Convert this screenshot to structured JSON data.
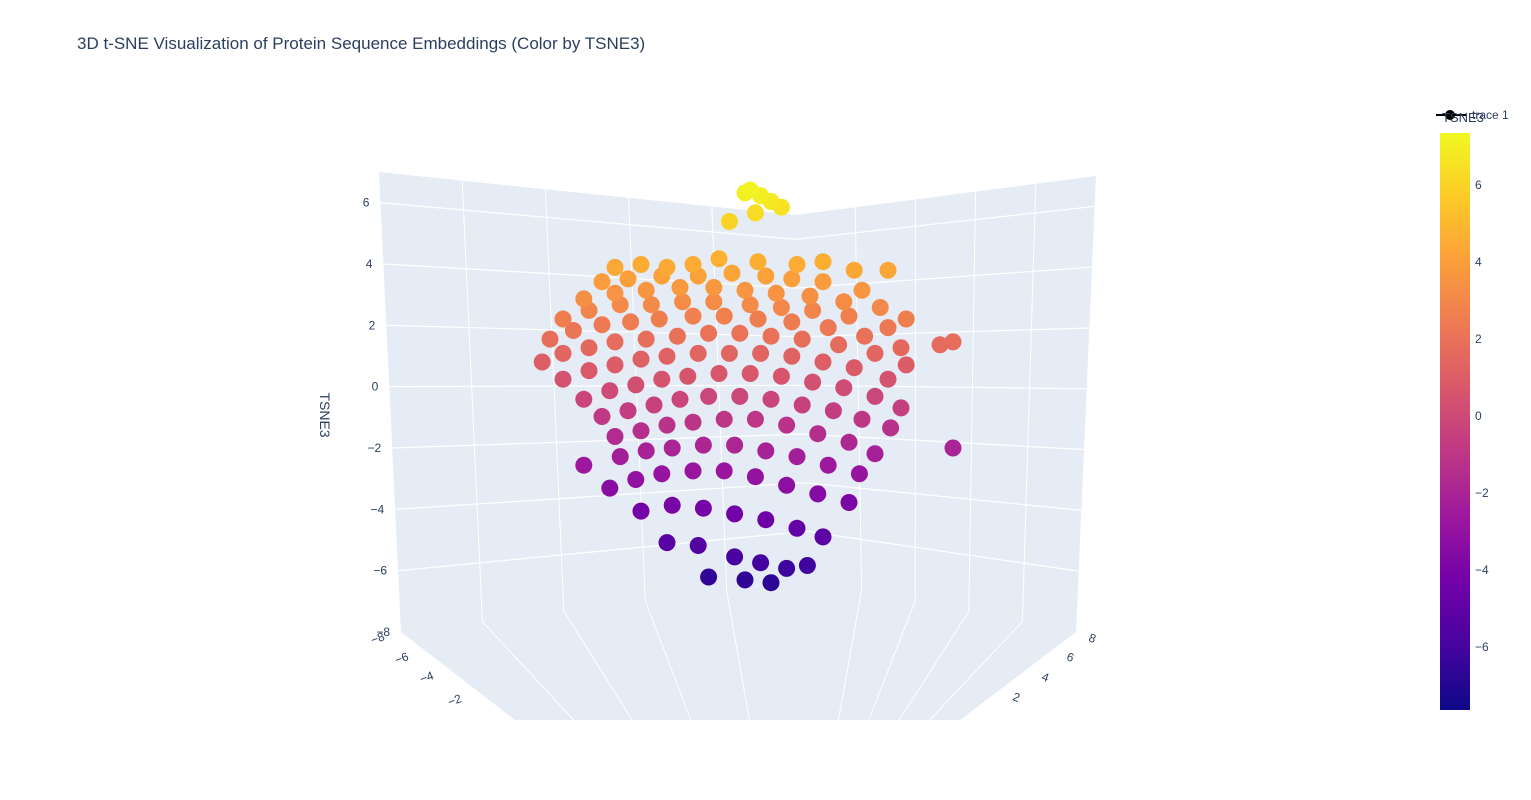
{
  "chart_data": {
    "type": "scatter",
    "title": "3D t-SNE Visualization of Protein Sequence Embeddings (Color by TSNE3)",
    "series": [
      {
        "name": "trace 1"
      }
    ],
    "axes": {
      "z": {
        "label": "TSNE3",
        "ticks": [
          "6",
          "4",
          "2",
          "0",
          "−2",
          "−4",
          "−6",
          "−8"
        ],
        "range": [
          -8,
          7
        ]
      },
      "x": {
        "label": "",
        "ticks": [
          "−8",
          "−6",
          "−4",
          "−2"
        ]
      },
      "y": {
        "label": "",
        "ticks": [
          "8",
          "6",
          "4",
          "2"
        ]
      }
    },
    "colorbar": {
      "title": "TSNE3",
      "ticks": [
        "6",
        "4",
        "2",
        "0",
        "−2",
        "−4",
        "−6"
      ],
      "range": [
        -7.6,
        7.2
      ],
      "colorscale": [
        "#0d0887",
        "#46039f",
        "#7201a8",
        "#9c179e",
        "#bd3786",
        "#d8576b",
        "#ed7953",
        "#fb9f3a",
        "#fdca26",
        "#f0f921"
      ]
    },
    "points": [
      [
        0.0,
        6.9
      ],
      [
        0.02,
        7.0
      ],
      [
        0.06,
        6.8
      ],
      [
        0.1,
        6.6
      ],
      [
        0.04,
        6.2
      ],
      [
        -0.06,
        5.9
      ],
      [
        0.14,
        6.4
      ],
      [
        -0.5,
        4.3
      ],
      [
        -0.4,
        4.4
      ],
      [
        -0.3,
        4.3
      ],
      [
        -0.2,
        4.4
      ],
      [
        -0.1,
        4.6
      ],
      [
        0.05,
        4.5
      ],
      [
        0.2,
        4.4
      ],
      [
        0.3,
        4.5
      ],
      [
        0.42,
        4.2
      ],
      [
        0.55,
        4.2
      ],
      [
        -0.55,
        3.8
      ],
      [
        -0.45,
        3.9
      ],
      [
        -0.32,
        4.0
      ],
      [
        -0.18,
        4.0
      ],
      [
        -0.05,
        4.1
      ],
      [
        0.08,
        4.0
      ],
      [
        0.18,
        3.9
      ],
      [
        0.3,
        3.8
      ],
      [
        0.45,
        3.5
      ],
      [
        -0.62,
        3.2
      ],
      [
        -0.5,
        3.4
      ],
      [
        -0.38,
        3.5
      ],
      [
        -0.25,
        3.6
      ],
      [
        -0.12,
        3.6
      ],
      [
        0.0,
        3.5
      ],
      [
        0.12,
        3.4
      ],
      [
        0.25,
        3.3
      ],
      [
        0.38,
        3.1
      ],
      [
        0.52,
        2.9
      ],
      [
        0.62,
        2.5
      ],
      [
        -0.7,
        2.5
      ],
      [
        -0.6,
        2.8
      ],
      [
        -0.48,
        3.0
      ],
      [
        -0.36,
        3.0
      ],
      [
        -0.24,
        3.1
      ],
      [
        -0.12,
        3.1
      ],
      [
        0.02,
        3.0
      ],
      [
        0.14,
        2.9
      ],
      [
        0.26,
        2.8
      ],
      [
        0.4,
        2.6
      ],
      [
        0.55,
        2.2
      ],
      [
        0.75,
        1.6
      ],
      [
        0.8,
        1.7
      ],
      [
        -0.75,
        1.8
      ],
      [
        -0.66,
        2.1
      ],
      [
        -0.55,
        2.3
      ],
      [
        -0.44,
        2.4
      ],
      [
        -0.33,
        2.5
      ],
      [
        -0.2,
        2.6
      ],
      [
        -0.08,
        2.6
      ],
      [
        0.05,
        2.5
      ],
      [
        0.18,
        2.4
      ],
      [
        0.32,
        2.2
      ],
      [
        0.46,
        1.9
      ],
      [
        0.6,
        1.5
      ],
      [
        -0.78,
        1.0
      ],
      [
        -0.7,
        1.3
      ],
      [
        -0.6,
        1.5
      ],
      [
        -0.5,
        1.7
      ],
      [
        -0.38,
        1.8
      ],
      [
        -0.26,
        1.9
      ],
      [
        -0.14,
        2.0
      ],
      [
        -0.02,
        2.0
      ],
      [
        0.1,
        1.9
      ],
      [
        0.22,
        1.8
      ],
      [
        0.36,
        1.6
      ],
      [
        0.5,
        1.3
      ],
      [
        0.62,
        0.9
      ],
      [
        -0.7,
        0.4
      ],
      [
        -0.6,
        0.7
      ],
      [
        -0.5,
        0.9
      ],
      [
        -0.4,
        1.1
      ],
      [
        -0.3,
        1.2
      ],
      [
        -0.18,
        1.3
      ],
      [
        -0.06,
        1.3
      ],
      [
        0.06,
        1.3
      ],
      [
        0.18,
        1.2
      ],
      [
        0.3,
        1.0
      ],
      [
        0.42,
        0.8
      ],
      [
        0.55,
        0.4
      ],
      [
        -0.62,
        -0.3
      ],
      [
        -0.52,
        0.0
      ],
      [
        -0.42,
        0.2
      ],
      [
        -0.32,
        0.4
      ],
      [
        -0.22,
        0.5
      ],
      [
        -0.1,
        0.6
      ],
      [
        0.02,
        0.6
      ],
      [
        0.14,
        0.5
      ],
      [
        0.26,
        0.3
      ],
      [
        0.38,
        0.1
      ],
      [
        0.5,
        -0.2
      ],
      [
        0.6,
        -0.6
      ],
      [
        -0.55,
        -0.9
      ],
      [
        -0.45,
        -0.7
      ],
      [
        -0.35,
        -0.5
      ],
      [
        -0.25,
        -0.3
      ],
      [
        -0.14,
        -0.2
      ],
      [
        -0.02,
        -0.2
      ],
      [
        0.1,
        -0.3
      ],
      [
        0.22,
        -0.5
      ],
      [
        0.34,
        -0.7
      ],
      [
        0.45,
        -1.0
      ],
      [
        0.56,
        -1.3
      ],
      [
        0.8,
        -2.0
      ],
      [
        -0.5,
        -1.6
      ],
      [
        -0.4,
        -1.4
      ],
      [
        -0.3,
        -1.2
      ],
      [
        -0.2,
        -1.1
      ],
      [
        -0.08,
        -1.0
      ],
      [
        0.04,
        -1.0
      ],
      [
        0.16,
        -1.2
      ],
      [
        0.28,
        -1.5
      ],
      [
        0.4,
        -1.8
      ],
      [
        0.5,
        -2.2
      ],
      [
        -0.62,
        -2.6
      ],
      [
        -0.48,
        -2.3
      ],
      [
        -0.38,
        -2.1
      ],
      [
        -0.28,
        -2.0
      ],
      [
        -0.16,
        -1.9
      ],
      [
        -0.04,
        -1.9
      ],
      [
        0.08,
        -2.1
      ],
      [
        0.2,
        -2.3
      ],
      [
        0.32,
        -2.6
      ],
      [
        0.44,
        -2.9
      ],
      [
        -0.52,
        -3.4
      ],
      [
        -0.42,
        -3.1
      ],
      [
        -0.32,
        -2.9
      ],
      [
        -0.2,
        -2.8
      ],
      [
        -0.08,
        -2.8
      ],
      [
        0.04,
        -3.0
      ],
      [
        0.16,
        -3.3
      ],
      [
        0.28,
        -3.6
      ],
      [
        0.4,
        -3.9
      ],
      [
        -0.4,
        -4.2
      ],
      [
        -0.28,
        -4.0
      ],
      [
        -0.16,
        -4.1
      ],
      [
        -0.04,
        -4.3
      ],
      [
        0.08,
        -4.5
      ],
      [
        0.2,
        -4.8
      ],
      [
        0.3,
        -5.1
      ],
      [
        -0.3,
        -5.3
      ],
      [
        -0.18,
        -5.4
      ],
      [
        -0.04,
        -5.8
      ],
      [
        0.06,
        -6.0
      ],
      [
        0.16,
        -6.2
      ],
      [
        0.24,
        -6.1
      ],
      [
        0.0,
        -6.6
      ],
      [
        -0.14,
        -6.5
      ],
      [
        0.1,
        -6.7
      ]
    ]
  }
}
